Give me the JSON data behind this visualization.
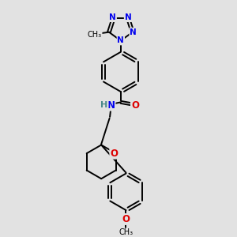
{
  "background_color": "#e2e2e2",
  "bond_color": "#000000",
  "N_color": "#0000ee",
  "O_color": "#dd0000",
  "H_color": "#4a8a8a",
  "text_color": "#000000",
  "figsize": [
    3.0,
    3.0
  ],
  "dpi": 100,
  "xlim": [
    -0.6,
    0.9
  ],
  "ylim": [
    -1.55,
    1.55
  ]
}
